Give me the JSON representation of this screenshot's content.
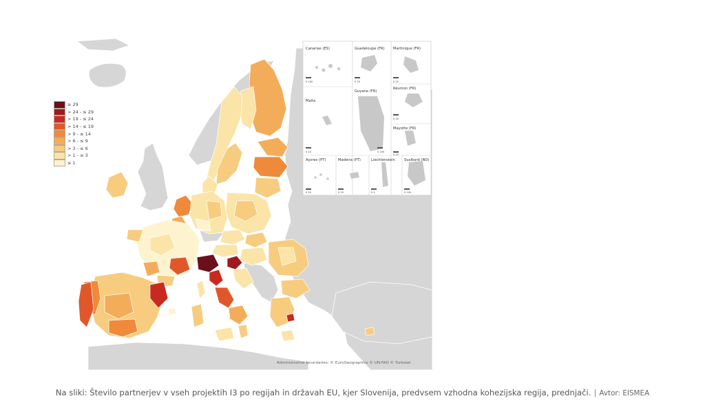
{
  "legend": {
    "items": [
      {
        "label": "≥ 29",
        "color": "#6b0f1a"
      },
      {
        "label": "> 24 - ≤ 29",
        "color": "#9e1a1e"
      },
      {
        "label": "> 19 - ≤ 24",
        "color": "#c92a20"
      },
      {
        "label": "> 14 - ≤ 19",
        "color": "#e0582a"
      },
      {
        "label": "> 9 - ≤ 14",
        "color": "#ef8a3a"
      },
      {
        "label": "> 6 - ≤ 9",
        "color": "#f3ad5a"
      },
      {
        "label": "> 3 - ≤ 6",
        "color": "#f7cc7e"
      },
      {
        "label": "> 1 - ≤ 3",
        "color": "#fae4a7"
      },
      {
        "label": "≤ 1",
        "color": "#fdf3cf"
      }
    ]
  },
  "insets": [
    {
      "label": "Canarias (ES)",
      "scale": "0  100"
    },
    {
      "label": "Guadeloupe (FR)",
      "scale": "0  25"
    },
    {
      "label": "Martinique (FR)",
      "scale": "0  20"
    },
    {
      "label": "Réunion (FR)",
      "scale": "0  20"
    },
    {
      "label": "Malta",
      "scale": "0  10"
    },
    {
      "label": "Guyane (FR)",
      "scale": "0  100"
    },
    {
      "label": "Mayotte (FR)",
      "scale": "0  15"
    },
    {
      "label": "Açores (PT)",
      "scale": "0  50"
    },
    {
      "label": "Madeira (PT)",
      "scale": "0  20"
    },
    {
      "label": "Liechtenstein",
      "scale": "0  5"
    },
    {
      "label": "Svalbard (NO)",
      "scale": "0  100"
    }
  ],
  "map": {
    "attribution": "Administrative boundaries: © EuroGeographics © UN-FAO © Turkstat",
    "colors": {
      "non_eu": "#d6d6d6",
      "sea": "#ffffff",
      "border": "#ffffff"
    }
  },
  "caption": {
    "text": "Na sliki: Število partnerjev v vseh projektih I3 po regijah in državah EU, kjer Slovenija, predvsem vzhodna kohezijska regija, prednjači.",
    "separator": "|",
    "credit": "Avtor: EISMEA"
  }
}
